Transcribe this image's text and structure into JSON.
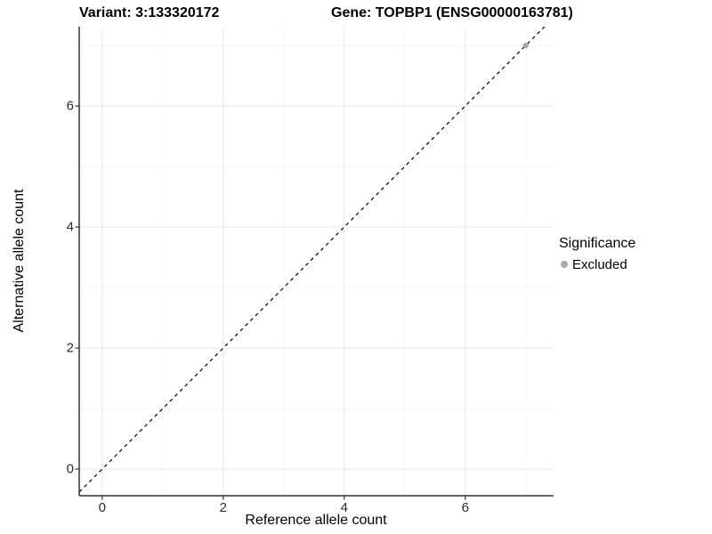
{
  "header": {
    "title_left": "Variant: 3:133320172",
    "title_right": "Gene: TOPBP1 (ENSG00000163781)"
  },
  "chart_data": {
    "type": "scatter",
    "xlabel": "Reference allele count",
    "ylabel": "Alternative allele count",
    "x_ticks": [
      0,
      2,
      4,
      6
    ],
    "y_ticks": [
      0,
      2,
      4,
      6
    ],
    "x_minor_ticks": [
      1,
      3,
      5,
      7
    ],
    "y_minor_ticks": [
      1,
      3,
      5,
      7
    ],
    "xlim": [
      -0.38,
      7.46
    ],
    "ylim": [
      -0.44,
      7.31
    ],
    "grid": "major+minor",
    "panel_background": "#ffffff",
    "major_grid_color": "#e8e8e8",
    "minor_grid_color": "#f3f3f3",
    "axis_line_color": "#333333",
    "tick_mark_color": "#333333",
    "reference_line": {
      "slope": 1,
      "intercept": 0,
      "linestyle": "dashed",
      "color": "#000000"
    },
    "series": [
      {
        "name": "Excluded",
        "color": "#a9a9a9",
        "points": [
          {
            "x": 7,
            "y": 7
          }
        ]
      }
    ],
    "legend_position": "right"
  },
  "legend": {
    "title": "Significance",
    "items": [
      {
        "label": "Excluded",
        "color": "#a9a9a9"
      }
    ]
  }
}
